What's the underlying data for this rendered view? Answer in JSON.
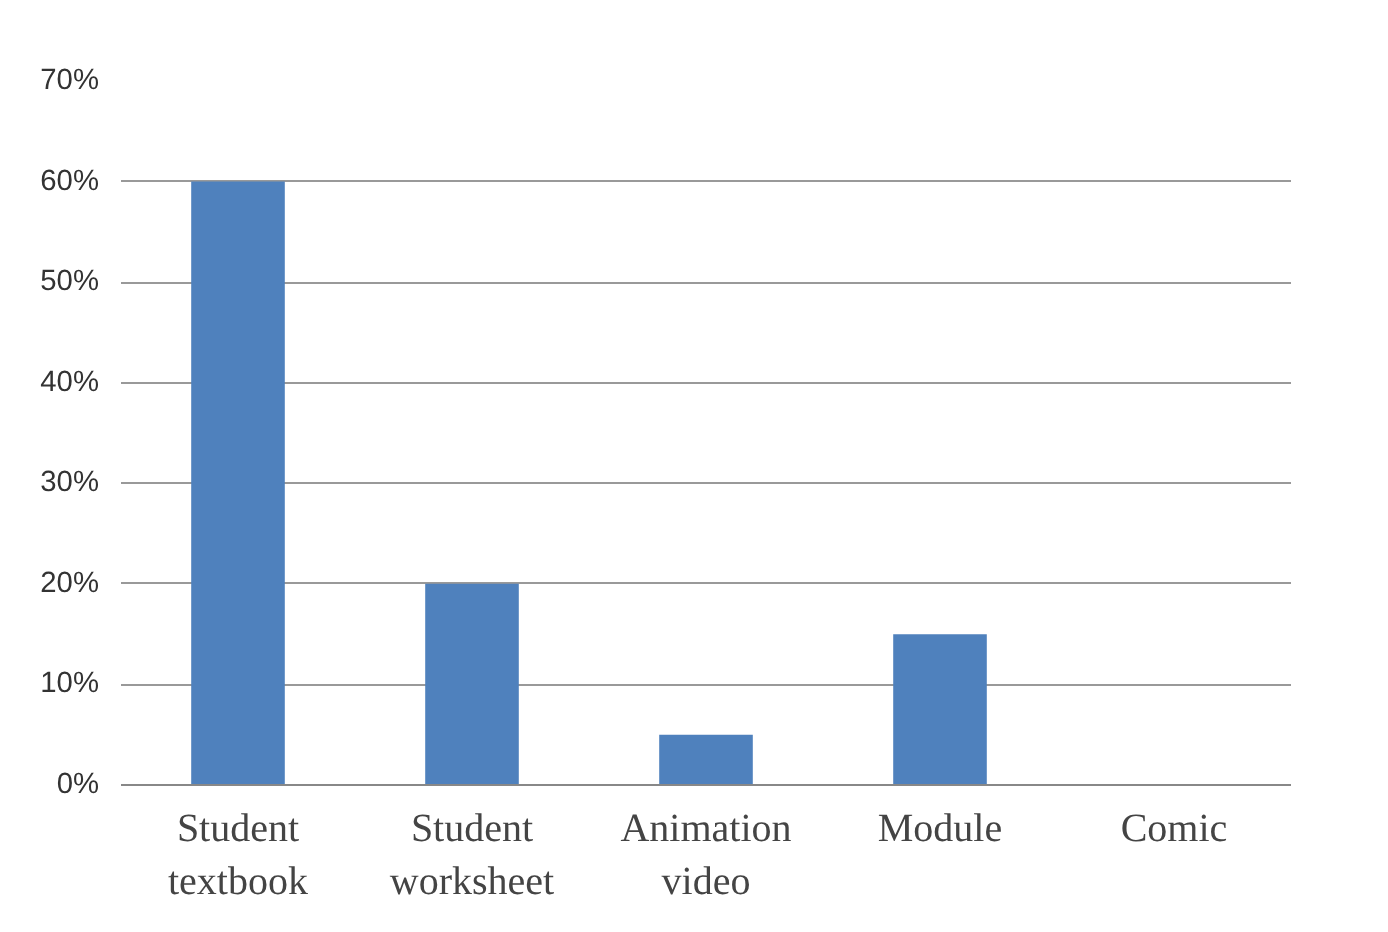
{
  "chart_data": {
    "type": "bar",
    "categories": [
      "Student textbook",
      "Student worksheet",
      "Animation video",
      "Module",
      "Comic"
    ],
    "values": [
      60,
      20,
      5,
      15,
      0
    ],
    "color": "#4f81bd",
    "ylim": [
      0,
      70
    ],
    "yticks": [
      {
        "value": 0,
        "label": "0%"
      },
      {
        "value": 10,
        "label": "10%"
      },
      {
        "value": 20,
        "label": "20%"
      },
      {
        "value": 30,
        "label": "30%"
      },
      {
        "value": 40,
        "label": "40%"
      },
      {
        "value": 50,
        "label": "50%"
      },
      {
        "value": 60,
        "label": "60%"
      },
      {
        "value": 70,
        "label": "70%"
      }
    ],
    "grid": "y"
  }
}
